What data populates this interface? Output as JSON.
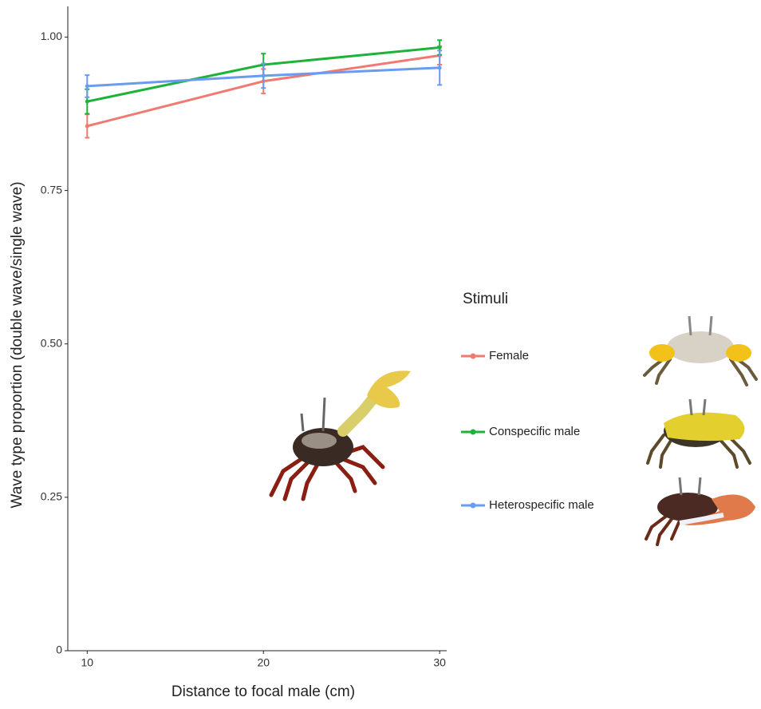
{
  "chart_data": {
    "type": "line",
    "x_label": "Distance to focal male (cm)",
    "y_label": "Wave type proportion (double wave/single wave)",
    "x": [
      10,
      20,
      30
    ],
    "xlim": [
      8.9,
      30.4
    ],
    "xticks": [
      10,
      20,
      30
    ],
    "ylim": [
      0,
      1.05
    ],
    "yticks": [
      0,
      0.25,
      {
        "value": 0.5,
        "label": "0.50"
      },
      0.75,
      {
        "value": 1,
        "label": "1.00"
      }
    ],
    "legend_title": "Stimuli",
    "series": [
      {
        "name": "Female",
        "color": "#F07A72",
        "values": [
          0.855,
          0.928,
          0.97
        ],
        "errors": [
          0.019,
          0.02,
          0.015
        ]
      },
      {
        "name": "Conspecific male",
        "color": "#1DB33A",
        "values": [
          0.895,
          0.955,
          0.983
        ],
        "errors": [
          0.02,
          0.018,
          0.012
        ]
      },
      {
        "name": "Heterospecific male",
        "color": "#6A9BEE",
        "values": [
          0.92,
          0.937,
          0.95
        ],
        "errors": [
          0.018,
          0.02,
          0.028
        ]
      }
    ]
  }
}
